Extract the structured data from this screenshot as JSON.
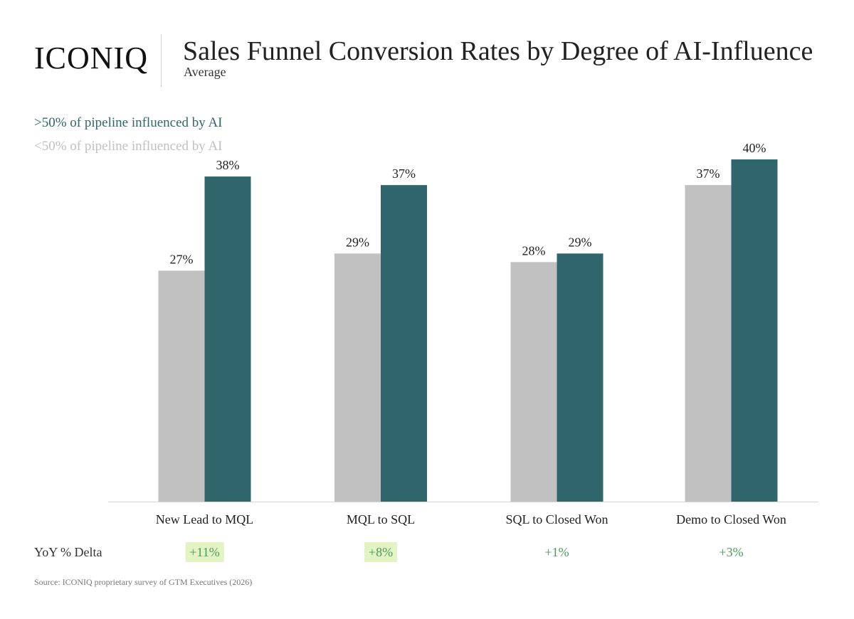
{
  "brand": {
    "logo_text": "ICONIQ"
  },
  "header": {
    "title": "Sales Funnel Conversion Rates by Degree of AI-Influence",
    "subtitle": "Average"
  },
  "colors": {
    "high_ai": "#2f666b",
    "low_ai": "#c1c1c1",
    "delta_text": "#4c9a5b",
    "delta_highlight": "#e2f3c4"
  },
  "chart_data": {
    "type": "bar",
    "title": "Sales Funnel Conversion Rates by Degree of AI-Influence",
    "subtitle": "Average",
    "categories": [
      "New Lead to MQL",
      "MQL to SQL",
      "SQL to Closed Won",
      "Demo to Closed Won"
    ],
    "series": [
      {
        "name": "<50% of pipeline influenced by AI",
        "values": [
          27,
          29,
          28,
          37
        ],
        "labels": [
          "27%",
          "29%",
          "28%",
          "37%"
        ],
        "color": "#c1c1c1"
      },
      {
        "name": ">50% of pipeline influenced by AI",
        "values": [
          38,
          37,
          29,
          40
        ],
        "labels": [
          "38%",
          "37%",
          "29%",
          "40%"
        ],
        "color": "#2f666b"
      }
    ],
    "legend_order": [
      1,
      0
    ],
    "ylim": [
      0,
      42
    ],
    "grid": false,
    "legend_position": "top-left",
    "xlabel": "",
    "ylabel": ""
  },
  "yoy": {
    "label": "YoY % Delta",
    "values": [
      {
        "text": "+11%",
        "highlight": true
      },
      {
        "text": "+8%",
        "highlight": true
      },
      {
        "text": "+1%",
        "highlight": false
      },
      {
        "text": "+3%",
        "highlight": false
      }
    ]
  },
  "footer": {
    "source": "Source: ICONIQ proprietary survey of GTM Executives (2026)"
  }
}
